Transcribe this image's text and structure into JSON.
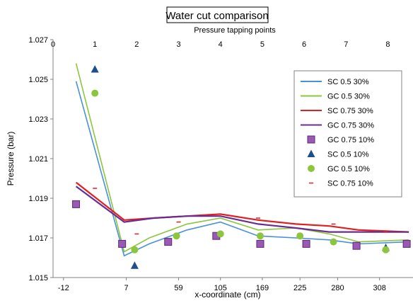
{
  "chart_data": {
    "type": "line",
    "title": "Water cut comparison",
    "top_axis_label": "Pressure tapping points",
    "top_ticks": [
      "0",
      "1",
      "2",
      "3",
      "4",
      "5",
      "6",
      "7",
      "8"
    ],
    "xlabel": "x-coordinate (cm)",
    "ylabel": "Pressure (bar)",
    "x_ticks": [
      "-12",
      "7",
      "59",
      "105",
      "169",
      "225",
      "280",
      "308"
    ],
    "x_tick_points": [
      0.25,
      1.75,
      3.0,
      4.0,
      5.0,
      5.9,
      6.8,
      7.8
    ],
    "x_range": [
      0,
      8.6
    ],
    "ylim": [
      1.015,
      1.027
    ],
    "y_ticks": [
      "1.015",
      "1.017",
      "1.019",
      "1.021",
      "1.023",
      "1.025",
      "1.027"
    ],
    "grid": false,
    "legend_position": "top-right",
    "series": [
      {
        "name": "SC 0.5 30%",
        "style": "line",
        "color": "#4a90d9",
        "points": [
          [
            0.55,
            1.0249
          ],
          [
            1.7,
            1.0161
          ],
          [
            2.3,
            1.0167
          ],
          [
            3.2,
            1.0174
          ],
          [
            4.0,
            1.0178
          ],
          [
            4.9,
            1.0171
          ],
          [
            5.8,
            1.017
          ],
          [
            6.6,
            1.0169
          ],
          [
            7.3,
            1.0167
          ],
          [
            8.5,
            1.0168
          ]
        ]
      },
      {
        "name": "GC 0.5 30%",
        "style": "line",
        "color": "#8cc63f",
        "points": [
          [
            0.55,
            1.0258
          ],
          [
            1.7,
            1.0163
          ],
          [
            2.3,
            1.017
          ],
          [
            3.2,
            1.0177
          ],
          [
            4.0,
            1.018
          ],
          [
            4.9,
            1.0174
          ],
          [
            5.8,
            1.0175
          ],
          [
            6.6,
            1.0172
          ],
          [
            7.3,
            1.0168
          ],
          [
            8.5,
            1.0169
          ]
        ]
      },
      {
        "name": "SC 0.75 30%",
        "style": "line",
        "color": "#e02020",
        "points": [
          [
            0.55,
            1.0198
          ],
          [
            1.7,
            1.0179
          ],
          [
            2.4,
            1.018
          ],
          [
            3.2,
            1.0181
          ],
          [
            4.0,
            1.0182
          ],
          [
            4.9,
            1.0179
          ],
          [
            5.8,
            1.0177
          ],
          [
            6.6,
            1.0176
          ],
          [
            7.3,
            1.0174
          ],
          [
            8.5,
            1.0173
          ]
        ]
      },
      {
        "name": "GC 0.75 30%",
        "style": "line",
        "color": "#6a2c91",
        "points": [
          [
            0.55,
            1.0196
          ],
          [
            1.7,
            1.0178
          ],
          [
            2.4,
            1.018
          ],
          [
            3.2,
            1.0181
          ],
          [
            4.0,
            1.0181
          ],
          [
            4.9,
            1.0177
          ],
          [
            5.8,
            1.0175
          ],
          [
            6.6,
            1.0173
          ],
          [
            7.3,
            1.0173
          ],
          [
            8.5,
            1.0173
          ]
        ]
      },
      {
        "name": "GC 0.75 10%",
        "style": "square",
        "color": "#9b59b6",
        "points": [
          [
            0.55,
            1.0187
          ],
          [
            1.65,
            1.0167
          ],
          [
            2.75,
            1.0168
          ],
          [
            3.9,
            1.0171
          ],
          [
            4.95,
            1.0167
          ],
          [
            6.05,
            1.0167
          ],
          [
            7.25,
            1.0166
          ],
          [
            8.45,
            1.0167
          ]
        ]
      },
      {
        "name": "SC 0.5 10%",
        "style": "triangle",
        "color": "#1f4e8c",
        "points": [
          [
            1.0,
            1.0255
          ],
          [
            1.95,
            1.0156
          ],
          [
            7.95,
            1.0165
          ]
        ]
      },
      {
        "name": "GC 0.5 10%",
        "style": "circle",
        "color": "#8cc63f",
        "points": [
          [
            1.0,
            1.0243
          ],
          [
            1.95,
            1.0164
          ],
          [
            2.95,
            1.0171
          ],
          [
            4.0,
            1.0172
          ],
          [
            4.95,
            1.0171
          ],
          [
            5.9,
            1.0171
          ],
          [
            6.7,
            1.0168
          ],
          [
            7.95,
            1.0164
          ]
        ]
      },
      {
        "name": "SC 0.75 10%",
        "style": "dash",
        "color": "#e02020",
        "points": [
          [
            1.0,
            1.0195
          ],
          [
            2.0,
            1.0172
          ],
          [
            3.0,
            1.0178
          ],
          [
            4.9,
            1.018
          ],
          [
            6.7,
            1.0177
          ],
          [
            7.95,
            1.0173
          ]
        ]
      }
    ]
  }
}
